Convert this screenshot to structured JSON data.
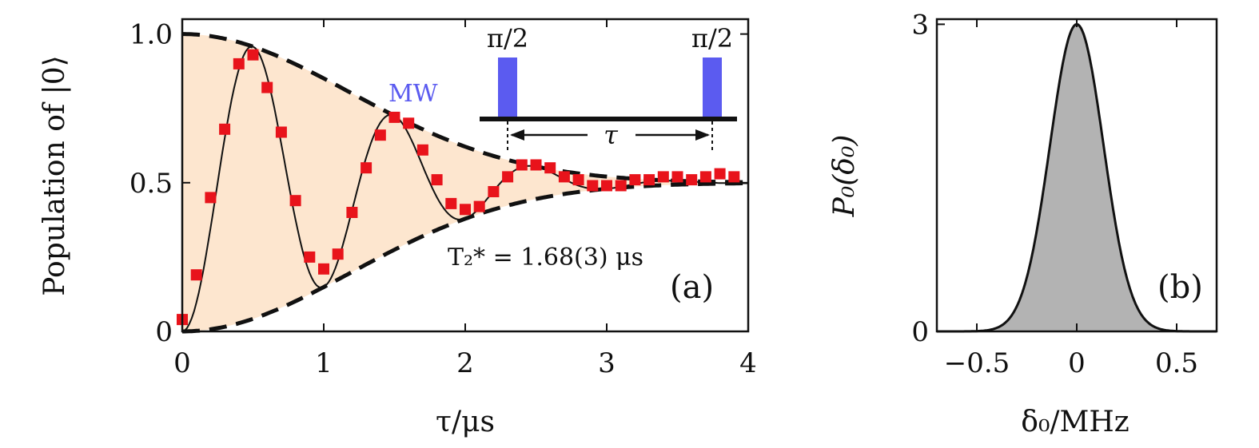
{
  "chart_data": [
    {
      "panel": "a",
      "type": "scatter",
      "panel_label": "(a)",
      "xlabel": "τ/μs",
      "ylabel": "Population of |0⟩",
      "xlim": [
        0,
        4
      ],
      "ylim": [
        0,
        1.05
      ],
      "x_ticks": [
        "0",
        "1",
        "2",
        "3",
        "4"
      ],
      "y_ticks": [
        "0",
        "0.5",
        "1.0"
      ],
      "annotation": "T₂* = 1.68(3) μs",
      "inset": {
        "mw_label": "MW",
        "pulse_label_1": "π/2",
        "pulse_label_2": "π/2",
        "tau_label": "τ",
        "pulse_color": "#5b5bf0"
      },
      "colors": {
        "data": "#e8131b",
        "fill": "#fde6cf",
        "fit": "#111111",
        "envelope": "#111111"
      },
      "fit": {
        "T2_star_us": 1.68,
        "frequency_MHz": 1.0
      },
      "series": [
        {
          "name": "data",
          "x": [
            0.0,
            0.1,
            0.2,
            0.3,
            0.4,
            0.5,
            0.6,
            0.7,
            0.8,
            0.9,
            1.0,
            1.1,
            1.2,
            1.3,
            1.4,
            1.5,
            1.6,
            1.7,
            1.8,
            1.9,
            2.0,
            2.1,
            2.2,
            2.3,
            2.4,
            2.5,
            2.6,
            2.7,
            2.8,
            2.9,
            3.0,
            3.1,
            3.2,
            3.3,
            3.4,
            3.5,
            3.6,
            3.7,
            3.8,
            3.9
          ],
          "y": [
            0.04,
            0.19,
            0.45,
            0.68,
            0.9,
            0.93,
            0.82,
            0.67,
            0.44,
            0.25,
            0.21,
            0.26,
            0.4,
            0.55,
            0.66,
            0.72,
            0.7,
            0.61,
            0.51,
            0.43,
            0.41,
            0.42,
            0.47,
            0.52,
            0.56,
            0.56,
            0.55,
            0.52,
            0.51,
            0.49,
            0.49,
            0.49,
            0.51,
            0.51,
            0.52,
            0.52,
            0.51,
            0.52,
            0.53,
            0.52
          ]
        }
      ]
    },
    {
      "panel": "b",
      "type": "area",
      "panel_label": "(b)",
      "xlabel": "δ₀/MHz",
      "ylabel": "P₀(δ₀)",
      "xlim": [
        -0.7,
        0.7
      ],
      "ylim": [
        0,
        3.05
      ],
      "x_ticks": [
        "−0.5",
        "0",
        "0.5"
      ],
      "y_ticks": [
        "0",
        "3"
      ],
      "colors": {
        "fill": "#b3b3b3",
        "line": "#111111"
      },
      "gaussian": {
        "peak": 3.0,
        "center": 0.0,
        "sigma": 0.134
      }
    }
  ]
}
